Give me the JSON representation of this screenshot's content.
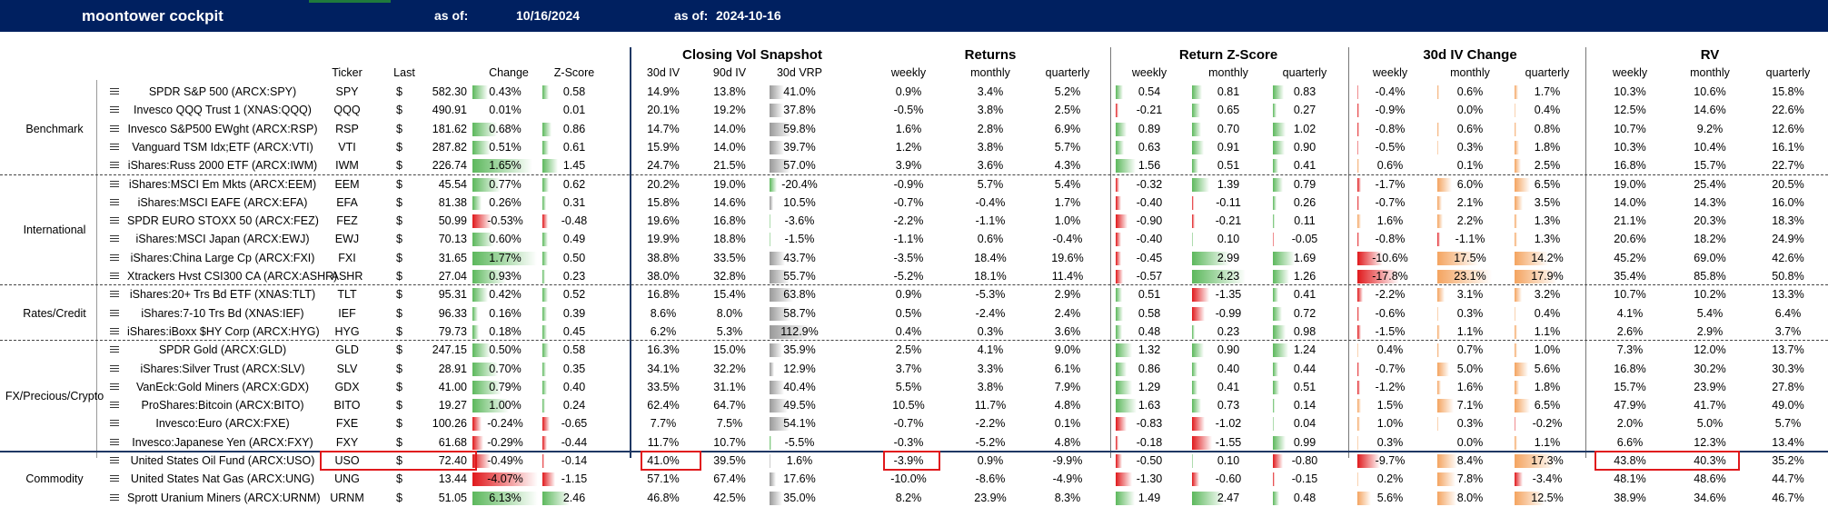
{
  "header": {
    "title": "moontower cockpit",
    "as_of_label_1": "as of:",
    "as_of_value_1": "10/16/2024",
    "as_of_label_2": "as of:",
    "as_of_value_2": "2024-10-16"
  },
  "sections": {
    "closing_vol": "Closing Vol Snapshot",
    "returns": "Returns",
    "return_z": "Return Z-Score",
    "iv_change": "30d IV Change",
    "rv": "RV"
  },
  "columns": [
    "Ticker",
    "Last",
    "Change",
    "Z-Score",
    "30d IV",
    "90d IV",
    "30d VRP",
    "weekly",
    "monthly",
    "quarterly",
    "weekly",
    "monthly",
    "quarterly",
    "weekly",
    "monthly",
    "quarterly",
    "weekly",
    "monthly",
    "quarterly"
  ],
  "colors": {
    "header_bg": "#002060",
    "pos": "#5cb85c",
    "neg": "#e0191c",
    "orange": "#f4a460",
    "gray": "#999999",
    "highlight": "#e0191c"
  },
  "groups": [
    {
      "label": "Benchmark",
      "start": 0,
      "end": 4
    },
    {
      "label": "International",
      "start": 5,
      "end": 10
    },
    {
      "label": "Rates/Credit",
      "start": 11,
      "end": 13
    },
    {
      "label": "FX/Precious/Crypto",
      "start": 14,
      "end": 19
    },
    {
      "label": "Commodity",
      "start": 20,
      "end": 22
    }
  ],
  "rows": [
    {
      "name": "SPDR S&P 500 (ARCX:SPY)",
      "ticker": "SPY",
      "dollar": "$",
      "last": "582.30",
      "change": "0.43%",
      "z": "0.58",
      "iv30": "14.9%",
      "iv90": "13.8%",
      "vrp": "41.0%",
      "rw": "0.9%",
      "rm": "3.4%",
      "rq": "5.2%",
      "zw": "0.54",
      "zm": "0.81",
      "zq": "0.83",
      "cw": "-0.4%",
      "cm": "0.6%",
      "cq": "1.7%",
      "vw": "10.3%",
      "vm": "10.6%",
      "vq": "15.8%"
    },
    {
      "name": "Invesco QQQ Trust 1 (XNAS:QQQ)",
      "ticker": "QQQ",
      "dollar": "$",
      "last": "490.91",
      "change": "0.01%",
      "z": "0.01",
      "iv30": "20.1%",
      "iv90": "19.2%",
      "vrp": "37.8%",
      "rw": "-0.5%",
      "rm": "3.8%",
      "rq": "2.5%",
      "zw": "-0.21",
      "zm": "0.65",
      "zq": "0.27",
      "cw": "-0.9%",
      "cm": "0.0%",
      "cq": "0.4%",
      "vw": "12.5%",
      "vm": "14.6%",
      "vq": "22.6%"
    },
    {
      "name": "Invesco S&P500 EWght (ARCX:RSP)",
      "ticker": "RSP",
      "dollar": "$",
      "last": "181.62",
      "change": "0.68%",
      "z": "0.86",
      "iv30": "14.7%",
      "iv90": "14.0%",
      "vrp": "59.8%",
      "rw": "1.6%",
      "rm": "2.8%",
      "rq": "6.9%",
      "zw": "0.89",
      "zm": "0.70",
      "zq": "1.02",
      "cw": "-0.8%",
      "cm": "0.6%",
      "cq": "0.8%",
      "vw": "10.7%",
      "vm": "9.2%",
      "vq": "12.6%"
    },
    {
      "name": "Vanguard TSM Idx;ETF (ARCX:VTI)",
      "ticker": "VTI",
      "dollar": "$",
      "last": "287.82",
      "change": "0.51%",
      "z": "0.61",
      "iv30": "15.9%",
      "iv90": "14.0%",
      "vrp": "39.7%",
      "rw": "1.2%",
      "rm": "3.8%",
      "rq": "5.7%",
      "zw": "0.63",
      "zm": "0.91",
      "zq": "0.90",
      "cw": "-0.5%",
      "cm": "0.3%",
      "cq": "1.8%",
      "vw": "10.3%",
      "vm": "10.4%",
      "vq": "16.1%"
    },
    {
      "name": "iShares:Russ 2000 ETF (ARCX:IWM)",
      "ticker": "IWM",
      "dollar": "$",
      "last": "226.74",
      "change": "1.65%",
      "z": "1.45",
      "iv30": "24.7%",
      "iv90": "21.5%",
      "vrp": "57.0%",
      "rw": "3.9%",
      "rm": "3.6%",
      "rq": "4.3%",
      "zw": "1.56",
      "zm": "0.51",
      "zq": "0.41",
      "cw": "0.6%",
      "cm": "0.1%",
      "cq": "2.5%",
      "vw": "16.8%",
      "vm": "15.7%",
      "vq": "22.7%"
    },
    {
      "name": "iShares:MSCI Em Mkts (ARCX:EEM)",
      "ticker": "EEM",
      "dollar": "$",
      "last": "45.54",
      "change": "0.77%",
      "z": "0.62",
      "iv30": "20.2%",
      "iv90": "19.0%",
      "vrp": "-20.4%",
      "rw": "-0.9%",
      "rm": "5.7%",
      "rq": "5.4%",
      "zw": "-0.32",
      "zm": "1.39",
      "zq": "0.79",
      "cw": "-1.7%",
      "cm": "6.0%",
      "cq": "6.5%",
      "vw": "19.0%",
      "vm": "25.4%",
      "vq": "20.5%"
    },
    {
      "name": "iShares:MSCI EAFE (ARCX:EFA)",
      "ticker": "EFA",
      "dollar": "$",
      "last": "81.38",
      "change": "0.26%",
      "z": "0.31",
      "iv30": "15.8%",
      "iv90": "14.6%",
      "vrp": "10.5%",
      "rw": "-0.7%",
      "rm": "-0.4%",
      "rq": "1.7%",
      "zw": "-0.40",
      "zm": "-0.11",
      "zq": "0.26",
      "cw": "-0.7%",
      "cm": "2.1%",
      "cq": "3.5%",
      "vw": "14.0%",
      "vm": "14.3%",
      "vq": "16.0%"
    },
    {
      "name": "SPDR EURO STOXX 50 (ARCX:FEZ)",
      "ticker": "FEZ",
      "dollar": "$",
      "last": "50.99",
      "change": "-0.53%",
      "z": "-0.48",
      "iv30": "19.6%",
      "iv90": "16.8%",
      "vrp": "-3.6%",
      "rw": "-2.2%",
      "rm": "-1.1%",
      "rq": "1.0%",
      "zw": "-0.90",
      "zm": "-0.21",
      "zq": "0.11",
      "cw": "1.6%",
      "cm": "2.2%",
      "cq": "1.3%",
      "vw": "21.1%",
      "vm": "20.3%",
      "vq": "18.3%"
    },
    {
      "name": "iShares:MSCI Japan (ARCX:EWJ)",
      "ticker": "EWJ",
      "dollar": "$",
      "last": "70.13",
      "change": "0.60%",
      "z": "0.49",
      "iv30": "19.9%",
      "iv90": "18.8%",
      "vrp": "-1.5%",
      "rw": "-1.1%",
      "rm": "0.6%",
      "rq": "-0.4%",
      "zw": "-0.40",
      "zm": "0.10",
      "zq": "-0.05",
      "cw": "-0.8%",
      "cm": "-1.1%",
      "cq": "1.3%",
      "vw": "20.6%",
      "vm": "18.2%",
      "vq": "24.9%"
    },
    {
      "name": "iShares:China Large Cp (ARCX:FXI)",
      "ticker": "FXI",
      "dollar": "$",
      "last": "31.65",
      "change": "1.77%",
      "z": "0.50",
      "iv30": "38.8%",
      "iv90": "33.5%",
      "vrp": "43.7%",
      "rw": "-3.5%",
      "rm": "18.4%",
      "rq": "19.6%",
      "zw": "-0.45",
      "zm": "2.99",
      "zq": "1.69",
      "cw": "-10.6%",
      "cm": "17.5%",
      "cq": "14.2%",
      "vw": "45.2%",
      "vm": "69.0%",
      "vq": "42.6%"
    },
    {
      "name": "Xtrackers Hvst CSI300 CA (ARCX:ASHR)",
      "ticker": "ASHR",
      "dollar": "$",
      "last": "27.04",
      "change": "0.93%",
      "z": "0.23",
      "iv30": "38.0%",
      "iv90": "32.8%",
      "vrp": "55.7%",
      "rw": "-5.2%",
      "rm": "18.1%",
      "rq": "11.4%",
      "zw": "-0.57",
      "zm": "4.23",
      "zq": "1.26",
      "cw": "-17.8%",
      "cm": "23.1%",
      "cq": "17.9%",
      "vw": "35.4%",
      "vm": "85.8%",
      "vq": "50.8%"
    },
    {
      "name": "iShares:20+ Trs Bd ETF (XNAS:TLT)",
      "ticker": "TLT",
      "dollar": "$",
      "last": "95.31",
      "change": "0.42%",
      "z": "0.52",
      "iv30": "16.8%",
      "iv90": "15.4%",
      "vrp": "63.8%",
      "rw": "0.9%",
      "rm": "-5.3%",
      "rq": "2.9%",
      "zw": "0.51",
      "zm": "-1.35",
      "zq": "0.41",
      "cw": "-2.2%",
      "cm": "3.1%",
      "cq": "3.2%",
      "vw": "10.7%",
      "vm": "10.2%",
      "vq": "13.3%"
    },
    {
      "name": "iShares:7-10 Trs Bd (XNAS:IEF)",
      "ticker": "IEF",
      "dollar": "$",
      "last": "96.33",
      "change": "0.16%",
      "z": "0.39",
      "iv30": "8.6%",
      "iv90": "8.0%",
      "vrp": "58.7%",
      "rw": "0.5%",
      "rm": "-2.4%",
      "rq": "2.4%",
      "zw": "0.58",
      "zm": "-0.99",
      "zq": "0.72",
      "cw": "-0.6%",
      "cm": "0.3%",
      "cq": "0.4%",
      "vw": "4.1%",
      "vm": "5.4%",
      "vq": "6.4%"
    },
    {
      "name": "iShares:iBoxx $HY Corp (ARCX:HYG)",
      "ticker": "HYG",
      "dollar": "$",
      "last": "79.73",
      "change": "0.18%",
      "z": "0.45",
      "iv30": "6.2%",
      "iv90": "5.3%",
      "vrp": "112.9%",
      "rw": "0.4%",
      "rm": "0.3%",
      "rq": "3.6%",
      "zw": "0.48",
      "zm": "0.23",
      "zq": "0.98",
      "cw": "-1.5%",
      "cm": "1.1%",
      "cq": "1.1%",
      "vw": "2.6%",
      "vm": "2.9%",
      "vq": "3.7%"
    },
    {
      "name": "SPDR Gold (ARCX:GLD)",
      "ticker": "GLD",
      "dollar": "$",
      "last": "247.15",
      "change": "0.50%",
      "z": "0.58",
      "iv30": "16.3%",
      "iv90": "15.0%",
      "vrp": "35.9%",
      "rw": "2.5%",
      "rm": "4.1%",
      "rq": "9.0%",
      "zw": "1.32",
      "zm": "0.90",
      "zq": "1.24",
      "cw": "0.4%",
      "cm": "0.7%",
      "cq": "1.0%",
      "vw": "7.3%",
      "vm": "12.0%",
      "vq": "13.7%"
    },
    {
      "name": "iShares:Silver Trust (ARCX:SLV)",
      "ticker": "SLV",
      "dollar": "$",
      "last": "28.91",
      "change": "0.70%",
      "z": "0.35",
      "iv30": "34.1%",
      "iv90": "32.2%",
      "vrp": "12.9%",
      "rw": "3.7%",
      "rm": "3.3%",
      "rq": "6.1%",
      "zw": "0.86",
      "zm": "0.40",
      "zq": "0.44",
      "cw": "-0.7%",
      "cm": "5.0%",
      "cq": "5.6%",
      "vw": "16.8%",
      "vm": "30.2%",
      "vq": "30.3%"
    },
    {
      "name": "VanEck:Gold Miners (ARCX:GDX)",
      "ticker": "GDX",
      "dollar": "$",
      "last": "41.00",
      "change": "0.79%",
      "z": "0.40",
      "iv30": "33.5%",
      "iv90": "31.1%",
      "vrp": "40.4%",
      "rw": "5.5%",
      "rm": "3.8%",
      "rq": "7.9%",
      "zw": "1.29",
      "zm": "0.41",
      "zq": "0.51",
      "cw": "-1.2%",
      "cm": "1.6%",
      "cq": "1.8%",
      "vw": "15.7%",
      "vm": "23.9%",
      "vq": "27.8%"
    },
    {
      "name": "ProShares:Bitcoin (ARCX:BITO)",
      "ticker": "BITO",
      "dollar": "$",
      "last": "19.27",
      "change": "1.00%",
      "z": "0.24",
      "iv30": "62.4%",
      "iv90": "64.7%",
      "vrp": "49.5%",
      "rw": "10.5%",
      "rm": "11.7%",
      "rq": "4.8%",
      "zw": "1.63",
      "zm": "0.73",
      "zq": "0.14",
      "cw": "1.5%",
      "cm": "7.1%",
      "cq": "6.5%",
      "vw": "47.9%",
      "vm": "41.7%",
      "vq": "49.0%"
    },
    {
      "name": "Invesco:Euro (ARCX:FXE)",
      "ticker": "FXE",
      "dollar": "$",
      "last": "100.26",
      "change": "-0.24%",
      "z": "-0.65",
      "iv30": "7.7%",
      "iv90": "7.5%",
      "vrp": "54.1%",
      "rw": "-0.7%",
      "rm": "-2.2%",
      "rq": "0.1%",
      "zw": "-0.83",
      "zm": "-1.02",
      "zq": "0.04",
      "cw": "1.0%",
      "cm": "0.3%",
      "cq": "-0.2%",
      "vw": "2.0%",
      "vm": "5.0%",
      "vq": "5.7%"
    },
    {
      "name": "Invesco:Japanese Yen (ARCX:FXY)",
      "ticker": "FXY",
      "dollar": "$",
      "last": "61.68",
      "change": "-0.29%",
      "z": "-0.44",
      "iv30": "11.7%",
      "iv90": "10.7%",
      "vrp": "-5.5%",
      "rw": "-0.3%",
      "rm": "-5.2%",
      "rq": "4.8%",
      "zw": "-0.18",
      "zm": "-1.55",
      "zq": "0.99",
      "cw": "0.3%",
      "cm": "0.0%",
      "cq": "1.1%",
      "vw": "6.6%",
      "vm": "12.3%",
      "vq": "13.4%"
    },
    {
      "name": "United States Oil Fund (ARCX:USO)",
      "ticker": "USO",
      "dollar": "$",
      "last": "72.40",
      "change": "-0.49%",
      "z": "-0.14",
      "iv30": "41.0%",
      "iv90": "39.5%",
      "vrp": "1.6%",
      "rw": "-3.9%",
      "rm": "0.9%",
      "rq": "-9.9%",
      "zw": "-0.50",
      "zm": "0.10",
      "zq": "-0.80",
      "cw": "-9.7%",
      "cm": "8.4%",
      "cq": "17.3%",
      "vw": "43.8%",
      "vm": "40.3%",
      "vq": "35.2%"
    },
    {
      "name": "United States Nat Gas (ARCX:UNG)",
      "ticker": "UNG",
      "dollar": "$",
      "last": "13.44",
      "change": "-4.07%",
      "z": "-1.15",
      "iv30": "57.1%",
      "iv90": "67.4%",
      "vrp": "17.6%",
      "rw": "-10.0%",
      "rm": "-8.6%",
      "rq": "-4.9%",
      "zw": "-1.30",
      "zm": "-0.60",
      "zq": "-0.15",
      "cw": "0.2%",
      "cm": "7.8%",
      "cq": "-3.4%",
      "vw": "48.1%",
      "vm": "48.6%",
      "vq": "44.7%"
    },
    {
      "name": "Sprott Uranium Miners (ARCX:URNM)",
      "ticker": "URNM",
      "dollar": "$",
      "last": "51.05",
      "change": "6.13%",
      "z": "2.46",
      "iv30": "46.8%",
      "iv90": "42.5%",
      "vrp": "35.0%",
      "rw": "8.2%",
      "rm": "23.9%",
      "rq": "8.3%",
      "zw": "1.49",
      "zm": "2.47",
      "zq": "0.48",
      "cw": "5.6%",
      "cm": "8.0%",
      "cq": "12.5%",
      "vw": "38.9%",
      "vm": "34.6%",
      "vq": "46.7%"
    }
  ]
}
